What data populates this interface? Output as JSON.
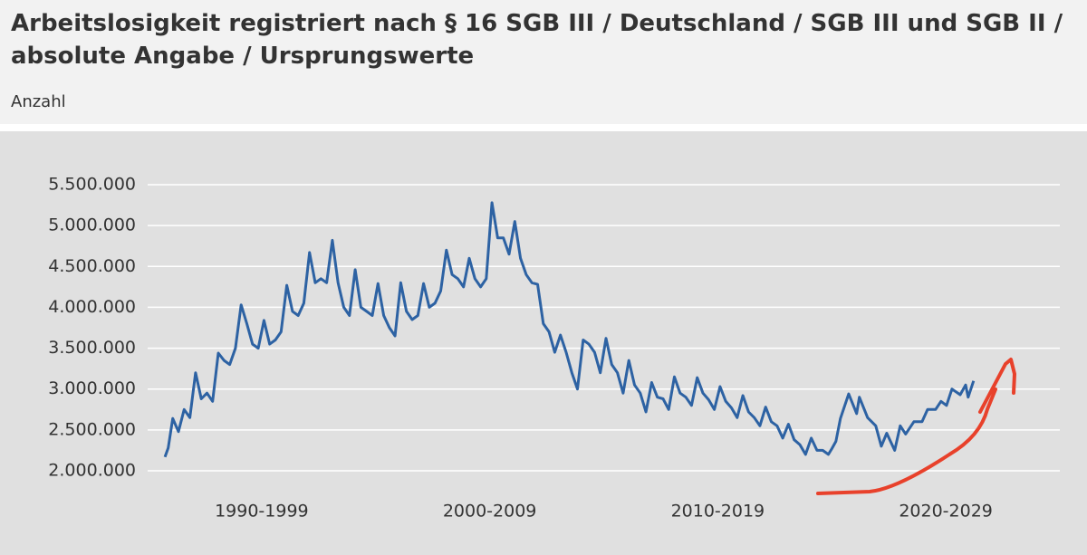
{
  "chart_data": {
    "type": "line",
    "title": "Arbeitslosigkeit registriert nach § 16 SGB III / Deutschland / SGB III und SGB II / absolute Angabe / Ursprungswerte",
    "subtitle": "Anzahl",
    "color": "#2d62a3",
    "grid": true,
    "xlim": [
      1990,
      2030
    ],
    "xticks": [
      {
        "value": 1995,
        "label": "1990-1999"
      },
      {
        "value": 2005,
        "label": "2000-2009"
      },
      {
        "value": 2015,
        "label": "2010-2019"
      },
      {
        "value": 2025,
        "label": "2020-2029"
      }
    ],
    "ylim": [
      2000000,
      5500000
    ],
    "yticks": [
      {
        "value": 2000000,
        "label": "2.000.000"
      },
      {
        "value": 2500000,
        "label": "2.500.000"
      },
      {
        "value": 3000000,
        "label": "3.000.000"
      },
      {
        "value": 3500000,
        "label": "3.500.000"
      },
      {
        "value": 4000000,
        "label": "4.000.000"
      },
      {
        "value": 4500000,
        "label": "4.500.000"
      },
      {
        "value": 5000000,
        "label": "5.000.000"
      },
      {
        "value": 5500000,
        "label": "5.500.000"
      }
    ],
    "x": [
      1990.76,
      1990.9,
      1991.1,
      1991.35,
      1991.6,
      1991.85,
      1992.1,
      1992.35,
      1992.6,
      1992.85,
      1993.1,
      1993.35,
      1993.6,
      1993.85,
      1994.1,
      1994.35,
      1994.6,
      1994.85,
      1995.1,
      1995.35,
      1995.6,
      1995.85,
      1996.1,
      1996.35,
      1996.6,
      1996.85,
      1997.1,
      1997.35,
      1997.6,
      1997.85,
      1998.1,
      1998.35,
      1998.6,
      1998.85,
      1999.1,
      1999.35,
      1999.6,
      1999.85,
      2000.1,
      2000.35,
      2000.6,
      2000.85,
      2001.1,
      2001.35,
      2001.6,
      2001.85,
      2002.1,
      2002.35,
      2002.6,
      2002.85,
      2003.1,
      2003.35,
      2003.6,
      2003.85,
      2004.1,
      2004.35,
      2004.6,
      2004.85,
      2005.1,
      2005.35,
      2005.6,
      2005.85,
      2006.1,
      2006.35,
      2006.6,
      2006.85,
      2007.1,
      2007.35,
      2007.6,
      2007.85,
      2008.1,
      2008.35,
      2008.6,
      2008.85,
      2009.1,
      2009.35,
      2009.6,
      2009.85,
      2010.1,
      2010.35,
      2010.6,
      2010.85,
      2011.1,
      2011.35,
      2011.6,
      2011.85,
      2012.1,
      2012.35,
      2012.6,
      2012.85,
      2013.1,
      2013.35,
      2013.6,
      2013.85,
      2014.1,
      2014.35,
      2014.6,
      2014.85,
      2015.1,
      2015.35,
      2015.6,
      2015.85,
      2016.1,
      2016.35,
      2016.6,
      2016.85,
      2017.1,
      2017.35,
      2017.6,
      2017.85,
      2018.1,
      2018.35,
      2018.6,
      2018.85,
      2019.1,
      2019.35,
      2019.6,
      2019.85,
      2020.0,
      2020.18,
      2020.38,
      2020.74,
      2021.09,
      2021.21,
      2021.57,
      2021.93,
      2022.17,
      2022.41,
      2022.76,
      2023.0,
      2023.24,
      2023.6,
      2023.96,
      2024.2,
      2024.55,
      2024.79,
      2025.03,
      2025.27,
      2025.63,
      2025.87,
      2025.98,
      2026.22
    ],
    "values": [
      2170000,
      2280000,
      2640000,
      2480000,
      2750000,
      2650000,
      3200000,
      2880000,
      2950000,
      2850000,
      3440000,
      3350000,
      3300000,
      3500000,
      4030000,
      3800000,
      3550000,
      3500000,
      3840000,
      3550000,
      3600000,
      3700000,
      4270000,
      3950000,
      3900000,
      4050000,
      4670000,
      4300000,
      4350000,
      4300000,
      4820000,
      4300000,
      4000000,
      3900000,
      4460000,
      4000000,
      3950000,
      3900000,
      4290000,
      3900000,
      3750000,
      3650000,
      4300000,
      3950000,
      3850000,
      3900000,
      4290000,
      4000000,
      4050000,
      4200000,
      4700000,
      4400000,
      4350000,
      4250000,
      4600000,
      4350000,
      4250000,
      4350000,
      5280000,
      4850000,
      4850000,
      4650000,
      5050000,
      4600000,
      4400000,
      4300000,
      4280000,
      3800000,
      3700000,
      3450000,
      3660000,
      3450000,
      3200000,
      3000000,
      3600000,
      3550000,
      3450000,
      3200000,
      3620000,
      3300000,
      3200000,
      2950000,
      3350000,
      3050000,
      2950000,
      2720000,
      3080000,
      2900000,
      2880000,
      2750000,
      3150000,
      2950000,
      2900000,
      2800000,
      3140000,
      2950000,
      2870000,
      2750000,
      3030000,
      2850000,
      2770000,
      2650000,
      2920000,
      2720000,
      2650000,
      2550000,
      2780000,
      2600000,
      2550000,
      2400000,
      2570000,
      2380000,
      2320000,
      2200000,
      2400000,
      2250000,
      2250000,
      2200000,
      2270000,
      2360000,
      2640000,
      2940000,
      2700000,
      2900000,
      2650000,
      2550000,
      2300000,
      2460000,
      2250000,
      2550000,
      2450000,
      2600000,
      2600000,
      2750000,
      2750000,
      2850000,
      2800000,
      3000000,
      2930000,
      3050000,
      2900000,
      3100000
    ]
  }
}
